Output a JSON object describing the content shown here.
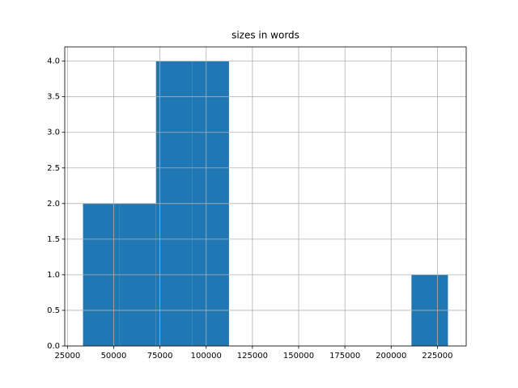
{
  "chart_data": {
    "type": "histogram",
    "title": "sizes in words",
    "bins": [
      33400,
      53130,
      72860,
      92590,
      112320,
      132050,
      151780,
      171510,
      191240,
      210970,
      230700
    ],
    "values": [
      2,
      2,
      4,
      4,
      0,
      0,
      0,
      0,
      0,
      1
    ],
    "color": "#1f77b4",
    "xlim": [
      23535,
      240565
    ],
    "xticks": [
      25000,
      50000,
      75000,
      100000,
      125000,
      150000,
      175000,
      200000,
      225000
    ],
    "ylim": [
      0,
      4.2
    ],
    "yticks": [
      {
        "value": 0,
        "label": "0.0"
      },
      {
        "value": 0.5,
        "label": "0.5"
      },
      {
        "value": 1,
        "label": "1.0"
      },
      {
        "value": 1.5,
        "label": "1.5"
      },
      {
        "value": 2,
        "label": "2.0"
      },
      {
        "value": 2.5,
        "label": "2.5"
      },
      {
        "value": 3,
        "label": "3.0"
      },
      {
        "value": 3.5,
        "label": "3.5"
      },
      {
        "value": 4,
        "label": "4.0"
      }
    ],
    "grid": true
  }
}
